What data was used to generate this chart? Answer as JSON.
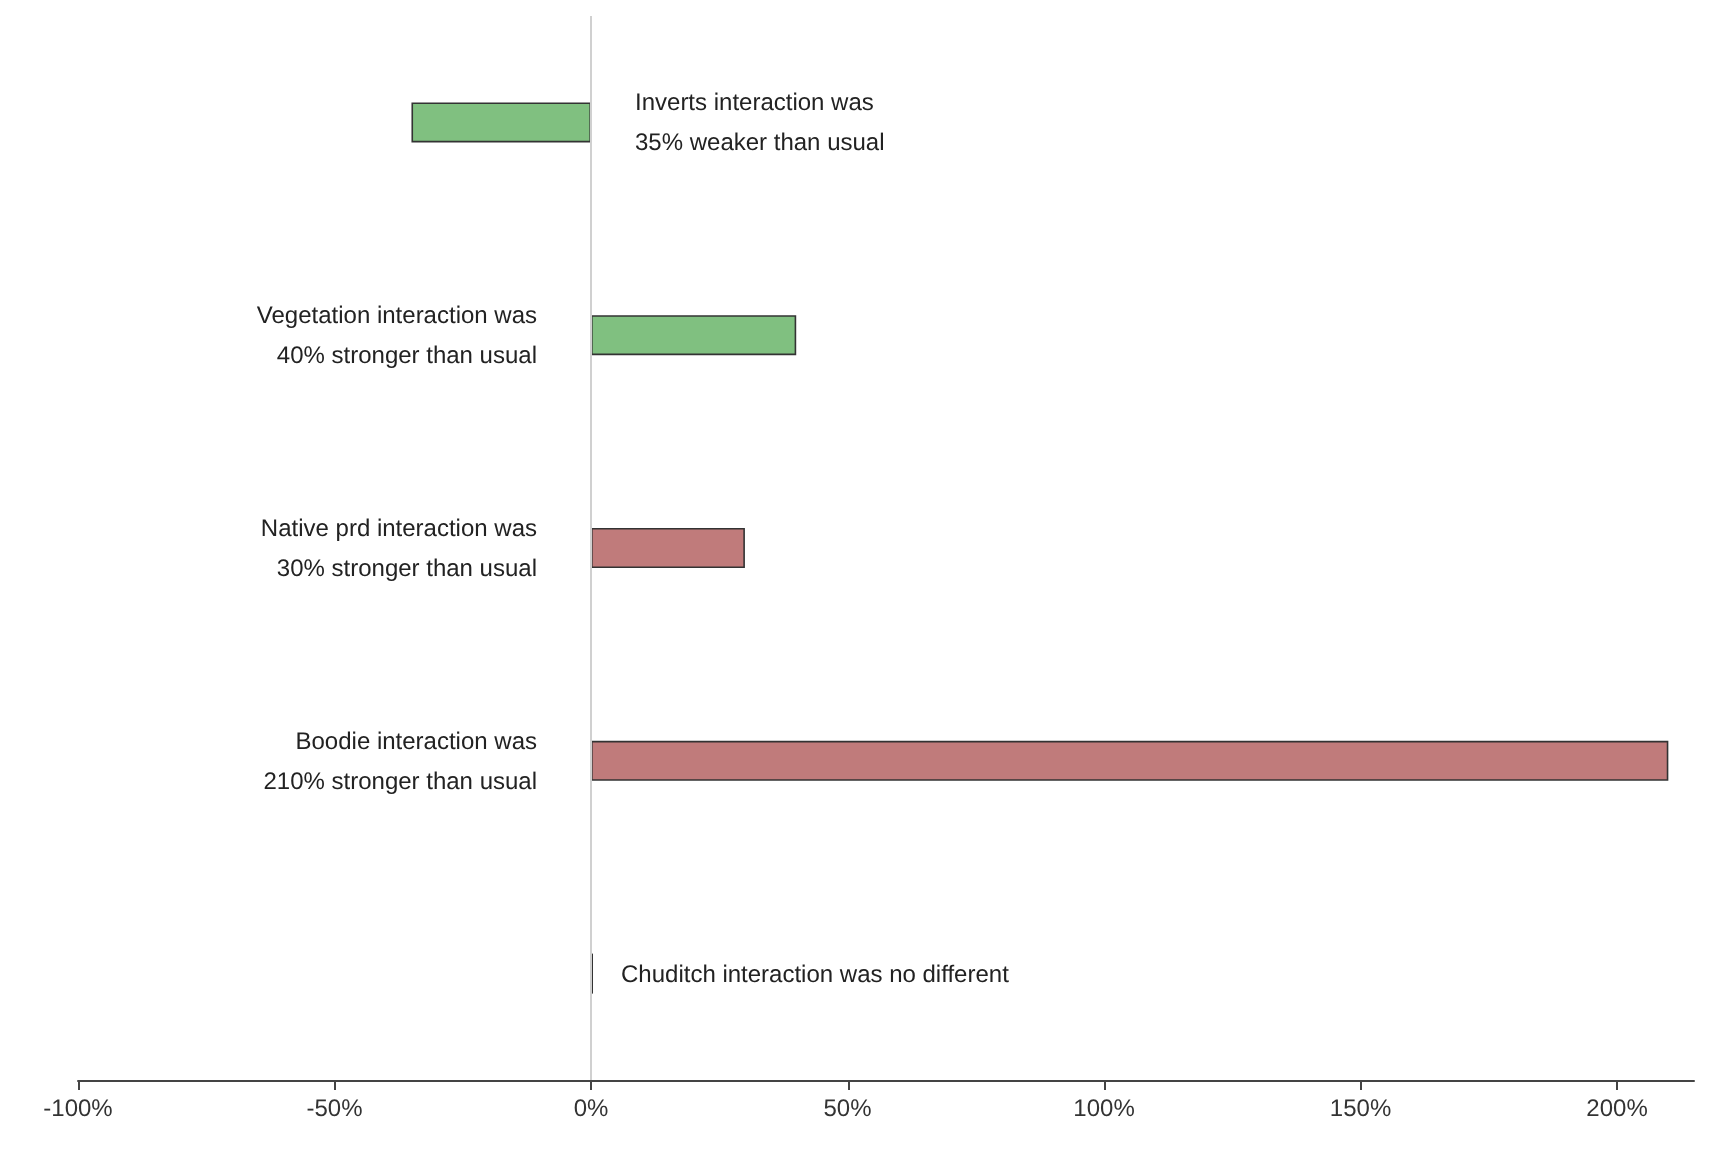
{
  "chart_data": {
    "type": "bar",
    "orientation": "horizontal",
    "categories": [
      null,
      null,
      null,
      null,
      null
    ],
    "values": [
      -35,
      40,
      30,
      210,
      0
    ],
    "colors": [
      "#80c080",
      "#80c080",
      "#c07b7b",
      "#c07b7b",
      "#c07b7b"
    ],
    "value_labels": [
      "Inverts interaction was\n35% weaker than usual",
      "Vegetation interaction was\n40% stronger than usual",
      "Native prd interaction was\n30% stronger than usual",
      "Boodie interaction was\n210% stronger than usual",
      "Chuditch interaction was no different"
    ],
    "xlim": [
      -100,
      215
    ],
    "xticks": [
      {
        "value": -100,
        "label": "-100%"
      },
      {
        "value": -50,
        "label": "-50%"
      },
      {
        "value": 0,
        "label": "0%"
      },
      {
        "value": 50,
        "label": "50%"
      },
      {
        "value": 100,
        "label": "100%"
      },
      {
        "value": 150,
        "label": "150%"
      },
      {
        "value": 200,
        "label": "200%"
      }
    ],
    "ref_lines": [
      {
        "axis": "x",
        "value": 0,
        "color": "#d0d0d0"
      }
    ],
    "grid": false
  }
}
